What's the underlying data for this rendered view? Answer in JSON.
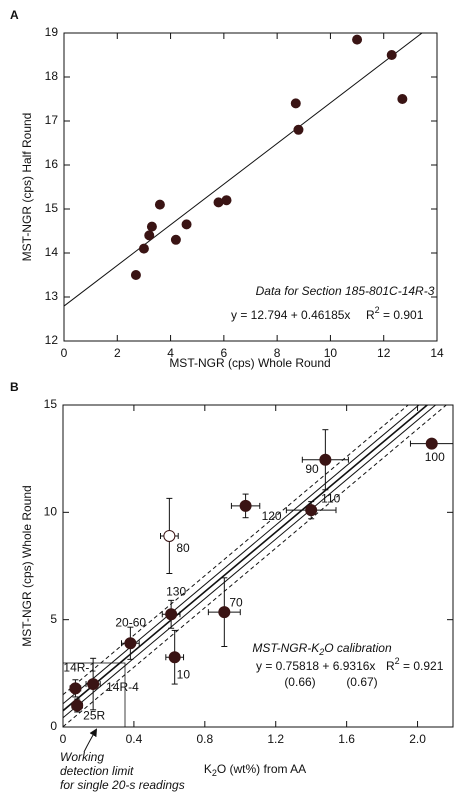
{
  "chart_data": [
    {
      "type": "scatter",
      "panel_label": "A",
      "x_label": "MST-NGR (cps) Whole Round",
      "y_label": "MST-NGR (cps) Half Round",
      "xlim": [
        0,
        14
      ],
      "ylim": [
        12,
        19
      ],
      "xticks": [
        0,
        2,
        4,
        6,
        8,
        10,
        12,
        14
      ],
      "yticks": [
        12,
        13,
        14,
        15,
        16,
        17,
        18,
        19
      ],
      "x": [
        2.7,
        3.0,
        3.2,
        3.3,
        3.6,
        4.2,
        4.6,
        5.8,
        6.1,
        8.7,
        8.8,
        11.0,
        12.3,
        12.7
      ],
      "y": [
        13.5,
        14.1,
        14.4,
        14.6,
        15.1,
        14.3,
        14.65,
        15.15,
        15.2,
        17.4,
        16.8,
        18.85,
        18.5,
        17.5
      ],
      "color": "#3a1414",
      "fit": {
        "intercept": 12.794,
        "slope": 0.46185
      },
      "annotation": "Data for Section 185-801C-14R-3",
      "equation": "y = 12.794 + 0.46185x",
      "r2": [
        "R",
        "2",
        " = 0.901"
      ]
    },
    {
      "type": "scatter",
      "panel_label": "B",
      "x_label": [
        "K",
        "2",
        "O (wt%)  from AA"
      ],
      "y_label": "MST-NGR (cps) Whole Round",
      "xlim": [
        0,
        2.2
      ],
      "ylim": [
        0,
        15
      ],
      "xticks": [
        0,
        0.4,
        0.8,
        1.2,
        1.6,
        {
          "value": 2,
          "label": "2.0"
        }
      ],
      "yticks": [
        0,
        5,
        10,
        15
      ],
      "point_labels": [
        "14R-1",
        "25R",
        "14R-4",
        "20-60",
        "10",
        "130",
        "70",
        "80",
        "120",
        "110",
        "90",
        "100"
      ],
      "x": [
        0.07,
        0.08,
        0.17,
        0.38,
        0.63,
        0.61,
        0.91,
        0.6,
        1.03,
        1.4,
        1.48,
        2.08
      ],
      "y": [
        1.8,
        1.0,
        2.0,
        3.9,
        3.25,
        5.25,
        5.35,
        8.9,
        10.3,
        10.1,
        12.45,
        13.2
      ],
      "x_err": [
        0.03,
        0.03,
        0.04,
        0.05,
        0.05,
        0.05,
        0.09,
        0.05,
        0.08,
        0.14,
        0.13,
        0.12
      ],
      "y_err": [
        0.4,
        0.3,
        1.2,
        0.75,
        1.25,
        0.65,
        1.6,
        1.75,
        0.55,
        0.4,
        1.4,
        0.2
      ],
      "marker_fills": [
        "#3a1414",
        "#3a1414",
        "#3a1414",
        "#3a1414",
        "#3a1414",
        "#3a1414",
        "#3a1414",
        "#ffffff",
        "#3a1414",
        "#3a1414",
        "#3a1414",
        "#3a1414"
      ],
      "color": "#3a1414",
      "fit": {
        "intercept": 0.75818,
        "slope": 6.9316
      },
      "annotation": [
        "MST-NGR-K",
        "2",
        "O calibration"
      ],
      "equation": "y = 0.75818 + 6.9316x",
      "r2": [
        "R",
        "2",
        " = 0.921"
      ],
      "std_errors": [
        "(0.66)",
        "(0.67)"
      ],
      "note": [
        "Working",
        "detection limit",
        "for single 20-s readings"
      ]
    }
  ]
}
